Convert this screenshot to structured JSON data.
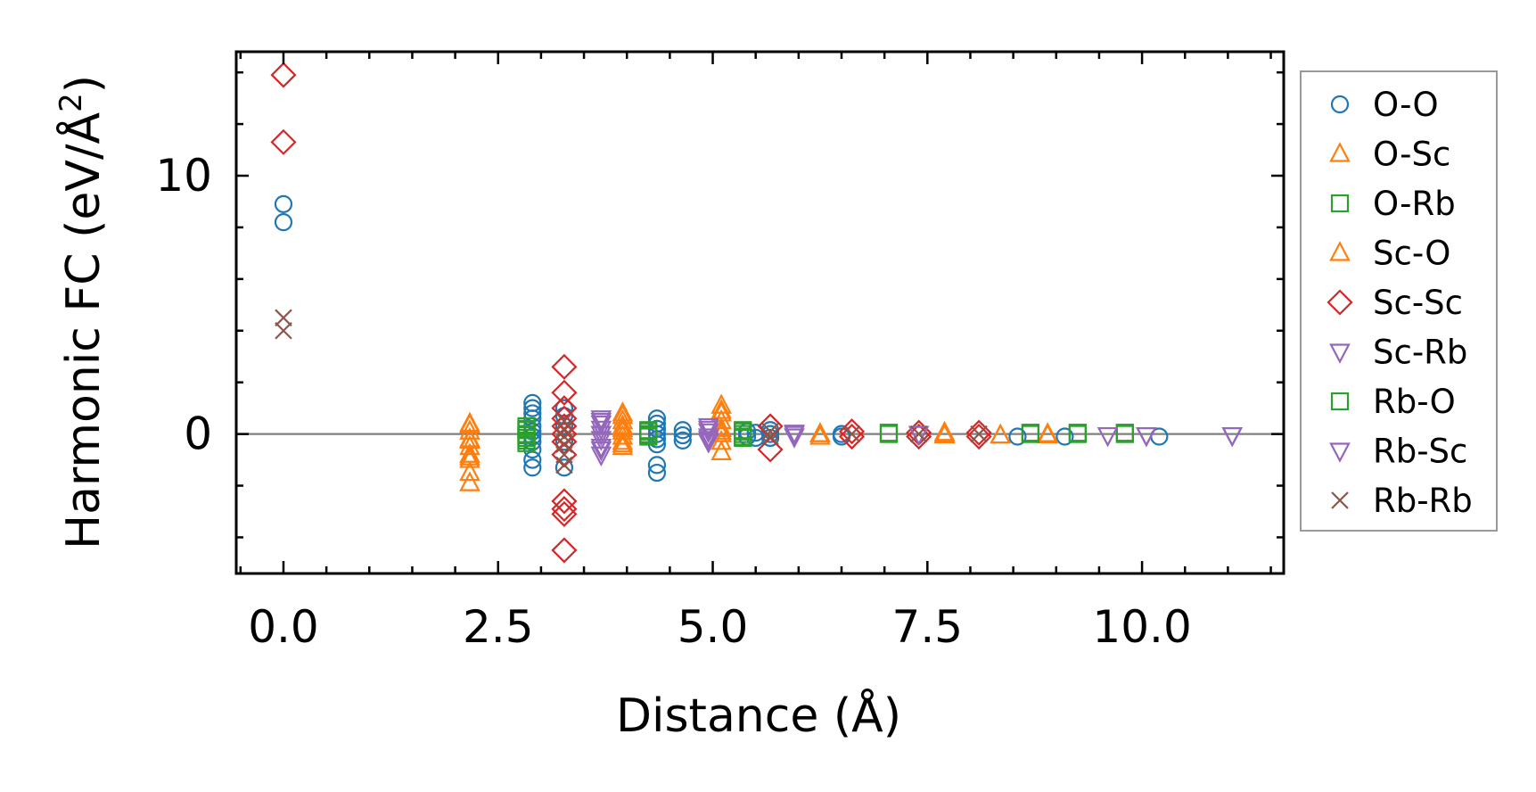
{
  "chart_data": {
    "type": "scatter",
    "title": "",
    "xlabel": "Distance (Å)",
    "ylabel": "Harmonic FC (eV/Å",
    "ylabel_sup": "2",
    "ylabel_close": ")",
    "xlim": [
      -0.55,
      11.65
    ],
    "ylim": [
      -5.4,
      14.8
    ],
    "xticks": [
      0.0,
      2.5,
      5.0,
      7.5,
      10.0
    ],
    "xtick_labels": [
      "0.0",
      "2.5",
      "5.0",
      "7.5",
      "10.0"
    ],
    "xminor": [
      -0.5,
      0.5,
      1.0,
      1.5,
      2.0,
      3.0,
      3.5,
      4.0,
      4.5,
      5.5,
      6.0,
      6.5,
      7.0,
      8.0,
      8.5,
      9.0,
      9.5,
      10.5,
      11.0,
      11.5
    ],
    "yticks": [
      0,
      10
    ],
    "ytick_labels": [
      "0",
      "10"
    ],
    "yminor": [
      -4,
      -2,
      2,
      4,
      6,
      8,
      12,
      14
    ],
    "zero_line": 0,
    "legend_position": "right-outside",
    "colors": {
      "blue": "#1f77b4",
      "orange": "#ff7f0e",
      "green": "#2ca02c",
      "red": "#d62728",
      "purple": "#9467bd",
      "brown": "#8c564b"
    },
    "series": [
      {
        "name": "O-O",
        "marker": "circle",
        "color": "#1f77b4",
        "x": [
          0,
          0,
          2.9,
          2.9,
          2.9,
          2.9,
          2.9,
          2.9,
          2.9,
          2.9,
          2.9,
          2.9,
          2.9,
          3.27,
          3.27,
          3.27,
          3.27,
          3.27,
          4.35,
          4.35,
          4.35,
          4.35,
          4.35,
          4.35,
          4.35,
          4.35,
          4.65,
          4.65,
          4.65,
          5.4,
          5.4,
          5.5,
          5.5,
          5.67,
          5.67,
          5.67,
          6.5,
          6.5,
          8.55,
          9.1,
          10.2
        ],
        "y": [
          8.9,
          8.2,
          1.2,
          1.0,
          0.8,
          0.6,
          0.3,
          0.1,
          -0.1,
          -0.3,
          -0.6,
          -1.0,
          -1.3,
          1.0,
          0.7,
          0.3,
          -0.3,
          -1.3,
          0.6,
          0.4,
          0.2,
          0.0,
          -0.2,
          -0.4,
          -1.2,
          -1.5,
          0.15,
          -0.05,
          -0.25,
          0.1,
          -0.1,
          0.05,
          -0.15,
          0.15,
          0.0,
          -0.15,
          0.0,
          -0.1,
          -0.1,
          -0.1,
          -0.1
        ]
      },
      {
        "name": "O-Sc",
        "marker": "triangle-up",
        "color": "#ff7f0e",
        "x": [
          2.17,
          2.17,
          2.17,
          2.17,
          2.17,
          2.17,
          2.17,
          2.17,
          3.95,
          3.95,
          3.95,
          3.95,
          3.95,
          3.95,
          3.95,
          5.1,
          5.1,
          5.1,
          5.1,
          5.1,
          5.1,
          5.1,
          6.25,
          6.25,
          7.7,
          7.7,
          8.35,
          8.9
        ],
        "y": [
          0.4,
          0.1,
          -0.2,
          -0.5,
          -0.8,
          -1.0,
          -1.5,
          -1.9,
          0.8,
          0.5,
          0.3,
          0.1,
          -0.1,
          -0.3,
          -0.5,
          1.1,
          0.8,
          0.5,
          0.2,
          0.0,
          -0.3,
          -0.7,
          0.0,
          -0.1,
          0.05,
          -0.05,
          -0.05,
          -0.05
        ]
      },
      {
        "name": "O-Rb",
        "marker": "square",
        "color": "#2ca02c",
        "x": [
          2.83,
          2.83,
          2.83,
          2.83,
          2.83,
          4.25,
          4.25,
          4.25,
          5.35,
          5.35,
          5.35,
          7.05,
          8.7,
          9.25,
          9.8
        ],
        "y": [
          0.3,
          0.15,
          0.0,
          -0.15,
          -0.35,
          0.15,
          0.0,
          -0.1,
          0.15,
          0.0,
          -0.15,
          0.05,
          0.05,
          0.05,
          0.05
        ]
      },
      {
        "name": "Sc-O",
        "marker": "triangle-up",
        "color": "#ff7f0e",
        "x": [
          2.17,
          2.17,
          2.17,
          3.95,
          3.95,
          3.95,
          5.1,
          5.1,
          6.25,
          7.7,
          8.35,
          8.9
        ],
        "y": [
          0.35,
          -0.25,
          -0.9,
          0.7,
          0.2,
          -0.4,
          0.9,
          0.1,
          0.0,
          0.0,
          -0.05,
          0.0
        ]
      },
      {
        "name": "Sc-Sc",
        "marker": "diamond",
        "color": "#d62728",
        "x": [
          0,
          0,
          3.27,
          3.27,
          3.27,
          3.27,
          3.27,
          3.27,
          3.27,
          3.27,
          3.27,
          3.27,
          3.27,
          3.27,
          5.67,
          5.67,
          6.62,
          6.62,
          7.4,
          7.4,
          8.1,
          8.1
        ],
        "y": [
          13.9,
          11.3,
          2.6,
          1.6,
          1.0,
          0.6,
          0.3,
          0.0,
          -0.3,
          -0.8,
          -2.6,
          -2.9,
          -3.1,
          -4.5,
          0.3,
          -0.6,
          0.1,
          -0.1,
          0.05,
          -0.1,
          0.05,
          -0.1
        ]
      },
      {
        "name": "Sc-Rb",
        "marker": "triangle-down",
        "color": "#9467bd",
        "x": [
          3.7,
          3.7,
          3.7,
          3.7,
          3.7,
          3.7,
          3.7,
          4.95,
          4.95,
          4.95,
          4.95,
          5.95,
          5.95,
          7.4,
          10.05,
          11.05
        ],
        "y": [
          0.6,
          0.4,
          0.2,
          0.0,
          -0.2,
          -0.5,
          -0.8,
          0.3,
          0.1,
          -0.1,
          -0.3,
          0.05,
          -0.1,
          0.0,
          -0.05,
          -0.05
        ]
      },
      {
        "name": "Rb-O",
        "marker": "square",
        "color": "#2ca02c",
        "x": [
          2.83,
          2.83,
          2.83,
          4.25,
          4.25,
          5.35,
          5.35,
          7.05,
          8.7,
          9.25,
          9.8
        ],
        "y": [
          0.2,
          -0.05,
          -0.25,
          0.1,
          -0.05,
          0.1,
          -0.1,
          0.0,
          0.0,
          0.0,
          0.0
        ]
      },
      {
        "name": "Rb-Sc",
        "marker": "triangle-down",
        "color": "#9467bd",
        "x": [
          3.7,
          3.7,
          3.7,
          4.95,
          4.95,
          5.95,
          9.6,
          10.05,
          11.05
        ],
        "y": [
          0.5,
          0.0,
          -0.6,
          0.2,
          -0.2,
          0.0,
          -0.05,
          -0.05,
          -0.05
        ]
      },
      {
        "name": "Rb-Rb",
        "marker": "x",
        "color": "#8c564b",
        "x": [
          0,
          0,
          3.27,
          3.27,
          3.27,
          3.27,
          3.27,
          3.27,
          5.67,
          5.67,
          6.62,
          7.4,
          8.1
        ],
        "y": [
          4.5,
          4.0,
          0.5,
          0.2,
          -0.1,
          -0.4,
          -0.8,
          -1.2,
          0.1,
          -0.1,
          0.0,
          0.0,
          0.0
        ]
      }
    ]
  }
}
